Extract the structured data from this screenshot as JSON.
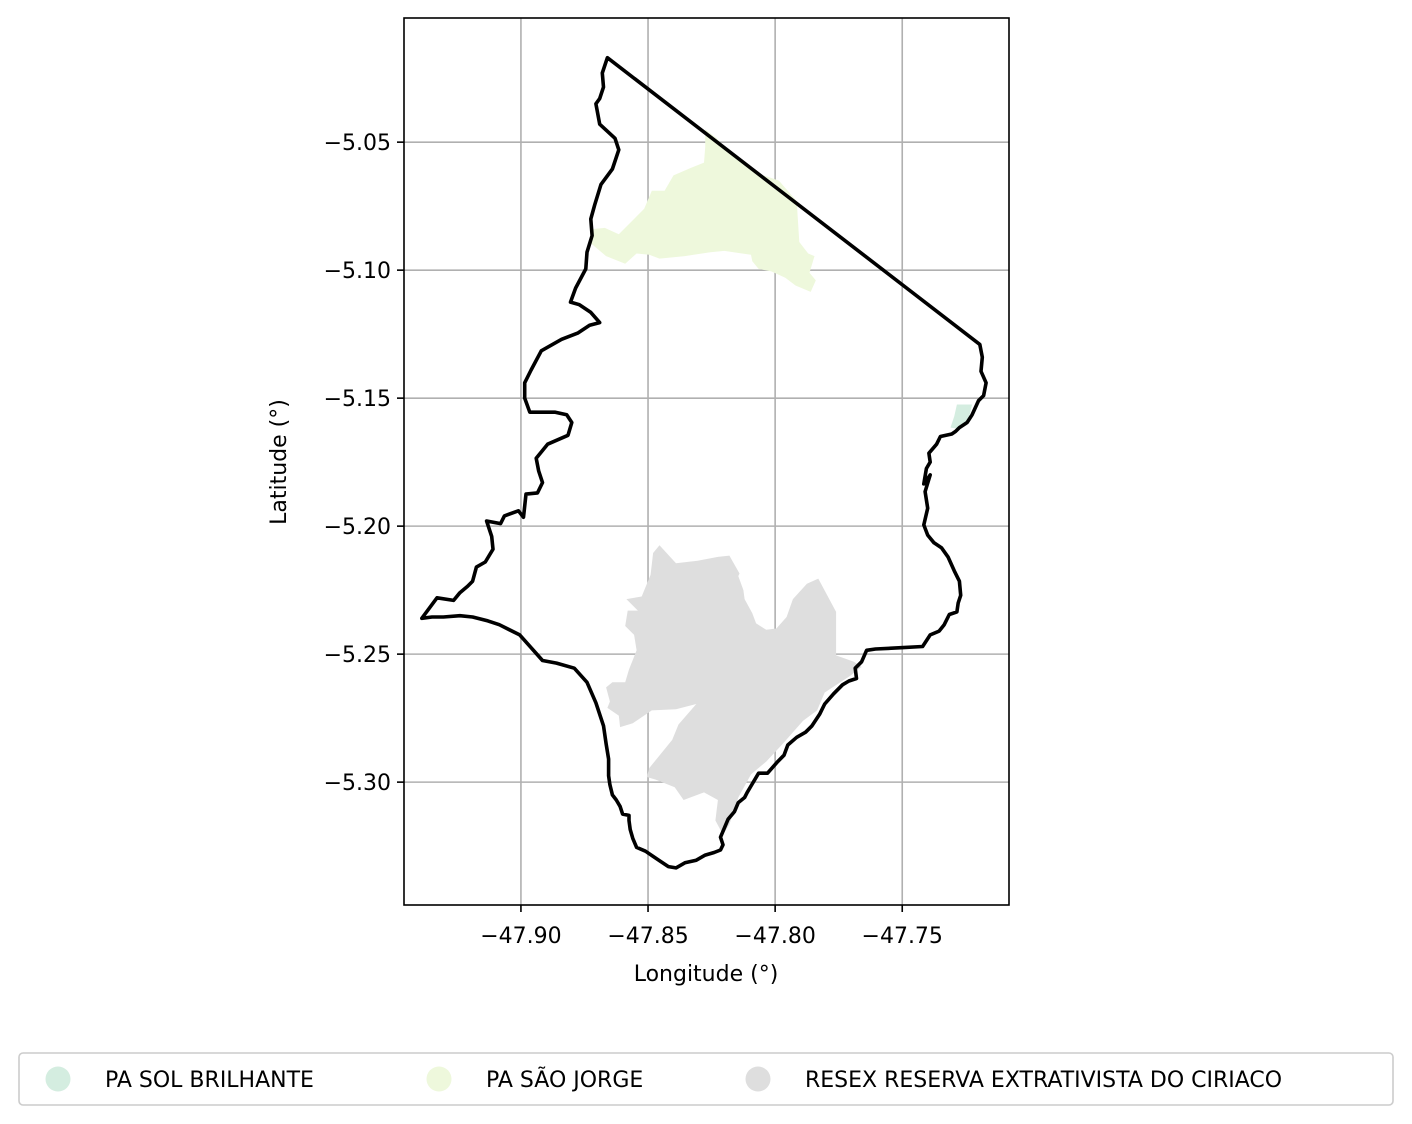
{
  "map": {
    "x_axis": {
      "label": "Longitude (°)",
      "range": [
        -47.946,
        -47.708
      ],
      "ticks": [
        {
          "value": -47.9,
          "label": "−47.90"
        },
        {
          "value": -47.85,
          "label": "−47.85"
        },
        {
          "value": -47.8,
          "label": "−47.80"
        },
        {
          "value": -47.75,
          "label": "−47.75"
        }
      ]
    },
    "y_axis": {
      "label": "Latitude (°)",
      "range": [
        -5.348,
        -5.0015
      ],
      "ticks": [
        {
          "value": -5.05,
          "label": "−5.05"
        },
        {
          "value": -5.1,
          "label": "−5.10"
        },
        {
          "value": -5.15,
          "label": "−5.15"
        },
        {
          "value": -5.2,
          "label": "−5.20"
        },
        {
          "value": -5.25,
          "label": "−5.25"
        },
        {
          "value": -5.3,
          "label": "−5.30"
        }
      ]
    },
    "grid": true,
    "legend_placement": "bottom, below the plot, three columns",
    "layers": [
      {
        "name": "PA SOL BRILHANTE",
        "color": "#d4ede0",
        "polygon": [
          [
            -47.7285,
            -5.1525
          ],
          [
            -47.7225,
            -5.1525
          ],
          [
            -47.7245,
            -5.1605
          ],
          [
            -47.7275,
            -5.162
          ],
          [
            -47.731,
            -5.1615
          ],
          [
            -47.7295,
            -5.157
          ]
        ]
      },
      {
        "name": "PA SÃO JORGE",
        "color": "#eef8dc",
        "polygon": [
          [
            -47.8275,
            -5.045
          ],
          [
            -47.823,
            -5.0485
          ],
          [
            -47.8185,
            -5.054
          ],
          [
            -47.8125,
            -5.058
          ],
          [
            -47.806,
            -5.0625
          ],
          [
            -47.8015,
            -5.064
          ],
          [
            -47.7985,
            -5.065
          ],
          [
            -47.7915,
            -5.073
          ],
          [
            -47.7905,
            -5.089
          ],
          [
            -47.787,
            -5.0935
          ],
          [
            -47.7845,
            -5.0945
          ],
          [
            -47.7865,
            -5.101
          ],
          [
            -47.784,
            -5.104
          ],
          [
            -47.786,
            -5.1085
          ],
          [
            -47.792,
            -5.106
          ],
          [
            -47.796,
            -5.103
          ],
          [
            -47.8015,
            -5.1005
          ],
          [
            -47.8065,
            -5.0995
          ],
          [
            -47.809,
            -5.0965
          ],
          [
            -47.8095,
            -5.094
          ],
          [
            -47.813,
            -5.0935
          ],
          [
            -47.82,
            -5.0925
          ],
          [
            -47.8255,
            -5.093
          ],
          [
            -47.8355,
            -5.0945
          ],
          [
            -47.8455,
            -5.0955
          ],
          [
            -47.8495,
            -5.094
          ],
          [
            -47.8545,
            -5.0935
          ],
          [
            -47.859,
            -5.0975
          ],
          [
            -47.8665,
            -5.0945
          ],
          [
            -47.8725,
            -5.0895
          ],
          [
            -47.8725,
            -5.084
          ],
          [
            -47.867,
            -5.0835
          ],
          [
            -47.8615,
            -5.086
          ],
          [
            -47.8565,
            -5.081
          ],
          [
            -47.8515,
            -5.076
          ],
          [
            -47.8485,
            -5.069
          ],
          [
            -47.8435,
            -5.069
          ],
          [
            -47.84,
            -5.063
          ],
          [
            -47.833,
            -5.06
          ],
          [
            -47.828,
            -5.058
          ],
          [
            -47.8275,
            -5.052
          ]
        ]
      },
      {
        "name": "RESEX RESERVA EXTRATIVISTA DO CIRIACO",
        "color": "#dedede",
        "polygon": [
          [
            -47.8455,
            -5.2075
          ],
          [
            -47.839,
            -5.2145
          ],
          [
            -47.8305,
            -5.2135
          ],
          [
            -47.8225,
            -5.212
          ],
          [
            -47.818,
            -5.2115
          ],
          [
            -47.814,
            -5.2185
          ],
          [
            -47.8145,
            -5.2195
          ],
          [
            -47.8125,
            -5.225
          ],
          [
            -47.812,
            -5.2285
          ],
          [
            -47.809,
            -5.234
          ],
          [
            -47.8075,
            -5.238
          ],
          [
            -47.8035,
            -5.2405
          ],
          [
            -47.7995,
            -5.24
          ],
          [
            -47.7955,
            -5.2355
          ],
          [
            -47.793,
            -5.2285
          ],
          [
            -47.7875,
            -5.2225
          ],
          [
            -47.783,
            -5.2205
          ],
          [
            -47.7795,
            -5.227
          ],
          [
            -47.776,
            -5.2335
          ],
          [
            -47.776,
            -5.2505
          ],
          [
            -47.769,
            -5.253
          ],
          [
            -47.766,
            -5.255
          ],
          [
            -47.7705,
            -5.2585
          ],
          [
            -47.7805,
            -5.265
          ],
          [
            -47.7835,
            -5.272
          ],
          [
            -47.789,
            -5.276
          ],
          [
            -47.797,
            -5.285
          ],
          [
            -47.8035,
            -5.292
          ],
          [
            -47.8095,
            -5.297
          ],
          [
            -47.8145,
            -5.306
          ],
          [
            -47.818,
            -5.3165
          ],
          [
            -47.8205,
            -5.3205
          ],
          [
            -47.8235,
            -5.315
          ],
          [
            -47.8225,
            -5.307
          ],
          [
            -47.828,
            -5.304
          ],
          [
            -47.836,
            -5.307
          ],
          [
            -47.8395,
            -5.302
          ],
          [
            -47.847,
            -5.299
          ],
          [
            -47.8505,
            -5.298
          ],
          [
            -47.8495,
            -5.2945
          ],
          [
            -47.845,
            -5.289
          ],
          [
            -47.8405,
            -5.2835
          ],
          [
            -47.838,
            -5.2775
          ],
          [
            -47.831,
            -5.2695
          ],
          [
            -47.839,
            -5.2715
          ],
          [
            -47.8485,
            -5.272
          ],
          [
            -47.856,
            -5.277
          ],
          [
            -47.861,
            -5.2785
          ],
          [
            -47.8615,
            -5.274
          ],
          [
            -47.866,
            -5.271
          ],
          [
            -47.865,
            -5.2685
          ],
          [
            -47.8665,
            -5.263
          ],
          [
            -47.864,
            -5.261
          ],
          [
            -47.859,
            -5.261
          ],
          [
            -47.8575,
            -5.256
          ],
          [
            -47.8545,
            -5.2485
          ],
          [
            -47.8555,
            -5.2425
          ],
          [
            -47.859,
            -5.239
          ],
          [
            -47.858,
            -5.233
          ],
          [
            -47.854,
            -5.233
          ],
          [
            -47.8585,
            -5.2285
          ],
          [
            -47.8525,
            -5.2275
          ],
          [
            -47.849,
            -5.219
          ],
          [
            -47.848,
            -5.2105
          ]
        ]
      },
      {
        "name": "boundary",
        "color": "#000000",
        "polygon": [
          [
            -47.866,
            -5.017
          ],
          [
            -47.7195,
            -5.129
          ],
          [
            -47.7185,
            -5.134
          ],
          [
            -47.719,
            -5.1395
          ],
          [
            -47.717,
            -5.144
          ],
          [
            -47.718,
            -5.149
          ],
          [
            -47.72,
            -5.151
          ],
          [
            -47.7225,
            -5.1565
          ],
          [
            -47.7245,
            -5.1595
          ],
          [
            -47.7275,
            -5.1615
          ],
          [
            -47.729,
            -5.163
          ],
          [
            -47.7305,
            -5.164
          ],
          [
            -47.735,
            -5.165
          ],
          [
            -47.7365,
            -5.168
          ],
          [
            -47.7395,
            -5.1715
          ],
          [
            -47.739,
            -5.175
          ],
          [
            -47.7405,
            -5.1775
          ],
          [
            -47.7415,
            -5.1835
          ],
          [
            -47.739,
            -5.18
          ],
          [
            -47.741,
            -5.1865
          ],
          [
            -47.74,
            -5.193
          ],
          [
            -47.7415,
            -5.1995
          ],
          [
            -47.74,
            -5.2035
          ],
          [
            -47.7375,
            -5.2065
          ],
          [
            -47.7345,
            -5.2085
          ],
          [
            -47.732,
            -5.212
          ],
          [
            -47.7295,
            -5.2175
          ],
          [
            -47.7275,
            -5.2215
          ],
          [
            -47.727,
            -5.227
          ],
          [
            -47.728,
            -5.23
          ],
          [
            -47.7285,
            -5.2335
          ],
          [
            -47.7315,
            -5.2345
          ],
          [
            -47.7335,
            -5.2385
          ],
          [
            -47.7355,
            -5.241
          ],
          [
            -47.739,
            -5.2425
          ],
          [
            -47.742,
            -5.247
          ],
          [
            -47.7505,
            -5.2475
          ],
          [
            -47.7605,
            -5.248
          ],
          [
            -47.764,
            -5.2485
          ],
          [
            -47.766,
            -5.253
          ],
          [
            -47.7685,
            -5.2555
          ],
          [
            -47.768,
            -5.2595
          ],
          [
            -47.771,
            -5.2605
          ],
          [
            -47.7735,
            -5.262
          ],
          [
            -47.777,
            -5.2655
          ],
          [
            -47.7805,
            -5.2695
          ],
          [
            -47.7825,
            -5.2735
          ],
          [
            -47.7855,
            -5.278
          ],
          [
            -47.788,
            -5.2805
          ],
          [
            -47.7915,
            -5.2825
          ],
          [
            -47.795,
            -5.2855
          ],
          [
            -47.7965,
            -5.2895
          ],
          [
            -47.799,
            -5.292
          ],
          [
            -47.803,
            -5.2965
          ],
          [
            -47.8065,
            -5.2965
          ],
          [
            -47.8095,
            -5.3015
          ],
          [
            -47.811,
            -5.304
          ],
          [
            -47.812,
            -5.306
          ],
          [
            -47.8145,
            -5.308
          ],
          [
            -47.816,
            -5.3115
          ],
          [
            -47.8185,
            -5.3145
          ],
          [
            -47.82,
            -5.318
          ],
          [
            -47.8215,
            -5.3215
          ],
          [
            -47.8205,
            -5.3245
          ],
          [
            -47.8215,
            -5.3265
          ],
          [
            -47.824,
            -5.3275
          ],
          [
            -47.8275,
            -5.3285
          ],
          [
            -47.831,
            -5.3305
          ],
          [
            -47.8355,
            -5.3315
          ],
          [
            -47.839,
            -5.3335
          ],
          [
            -47.842,
            -5.333
          ],
          [
            -47.845,
            -5.331
          ],
          [
            -47.848,
            -5.329
          ],
          [
            -47.851,
            -5.327
          ],
          [
            -47.8545,
            -5.3255
          ],
          [
            -47.856,
            -5.322
          ],
          [
            -47.857,
            -5.3185
          ],
          [
            -47.8575,
            -5.315
          ],
          [
            -47.8575,
            -5.313
          ],
          [
            -47.86,
            -5.3125
          ],
          [
            -47.861,
            -5.3095
          ],
          [
            -47.8625,
            -5.307
          ],
          [
            -47.864,
            -5.305
          ],
          [
            -47.865,
            -5.301
          ],
          [
            -47.8655,
            -5.2975
          ],
          [
            -47.8655,
            -5.291
          ],
          [
            -47.8665,
            -5.285
          ],
          [
            -47.8675,
            -5.278
          ],
          [
            -47.8705,
            -5.269
          ],
          [
            -47.874,
            -5.261
          ],
          [
            -47.879,
            -5.2555
          ],
          [
            -47.886,
            -5.2535
          ],
          [
            -47.8915,
            -5.2525
          ],
          [
            -47.896,
            -5.2475
          ],
          [
            -47.9005,
            -5.2425
          ],
          [
            -47.9085,
            -5.2385
          ],
          [
            -47.913,
            -5.237
          ],
          [
            -47.919,
            -5.2355
          ],
          [
            -47.924,
            -5.235
          ],
          [
            -47.9305,
            -5.2355
          ],
          [
            -47.935,
            -5.2355
          ],
          [
            -47.939,
            -5.236
          ],
          [
            -47.936,
            -5.232
          ],
          [
            -47.933,
            -5.228
          ],
          [
            -47.9265,
            -5.229
          ],
          [
            -47.924,
            -5.226
          ],
          [
            -47.921,
            -5.2235
          ],
          [
            -47.919,
            -5.2215
          ],
          [
            -47.9175,
            -5.216
          ],
          [
            -47.914,
            -5.214
          ],
          [
            -47.911,
            -5.209
          ],
          [
            -47.9115,
            -5.204
          ],
          [
            -47.9135,
            -5.198
          ],
          [
            -47.908,
            -5.199
          ],
          [
            -47.9065,
            -5.196
          ],
          [
            -47.901,
            -5.194
          ],
          [
            -47.899,
            -5.1965
          ],
          [
            -47.898,
            -5.1875
          ],
          [
            -47.8935,
            -5.187
          ],
          [
            -47.8915,
            -5.183
          ],
          [
            -47.893,
            -5.1785
          ],
          [
            -47.894,
            -5.1735
          ],
          [
            -47.8895,
            -5.168
          ],
          [
            -47.8815,
            -5.1645
          ],
          [
            -47.88,
            -5.1595
          ],
          [
            -47.882,
            -5.1565
          ],
          [
            -47.8865,
            -5.1555
          ],
          [
            -47.8965,
            -5.1555
          ],
          [
            -47.8985,
            -5.15
          ],
          [
            -47.8985,
            -5.144
          ],
          [
            -47.896,
            -5.139
          ],
          [
            -47.892,
            -5.1315
          ],
          [
            -47.884,
            -5.127
          ],
          [
            -47.8775,
            -5.1245
          ],
          [
            -47.873,
            -5.1215
          ],
          [
            -47.869,
            -5.1205
          ],
          [
            -47.8725,
            -5.1165
          ],
          [
            -47.877,
            -5.1135
          ],
          [
            -47.8805,
            -5.1125
          ],
          [
            -47.8785,
            -5.107
          ],
          [
            -47.8745,
            -5.0995
          ],
          [
            -47.874,
            -5.093
          ],
          [
            -47.872,
            -5.0865
          ],
          [
            -47.8725,
            -5.08
          ],
          [
            -47.871,
            -5.0745
          ],
          [
            -47.8685,
            -5.0665
          ],
          [
            -47.864,
            -5.0605
          ],
          [
            -47.8615,
            -5.053
          ],
          [
            -47.863,
            -5.0485
          ],
          [
            -47.869,
            -5.043
          ],
          [
            -47.8705,
            -5.035
          ],
          [
            -47.869,
            -5.033
          ],
          [
            -47.8675,
            -5.0285
          ],
          [
            -47.868,
            -5.023
          ]
        ]
      }
    ],
    "legend": [
      {
        "label": "PA SOL BRILHANTE",
        "color": "#d4ede0"
      },
      {
        "label": "PA SÃO JORGE",
        "color": "#eef8dc"
      },
      {
        "label": "RESEX RESERVA EXTRATIVISTA DO CIRIACO",
        "color": "#dedede"
      }
    ]
  }
}
